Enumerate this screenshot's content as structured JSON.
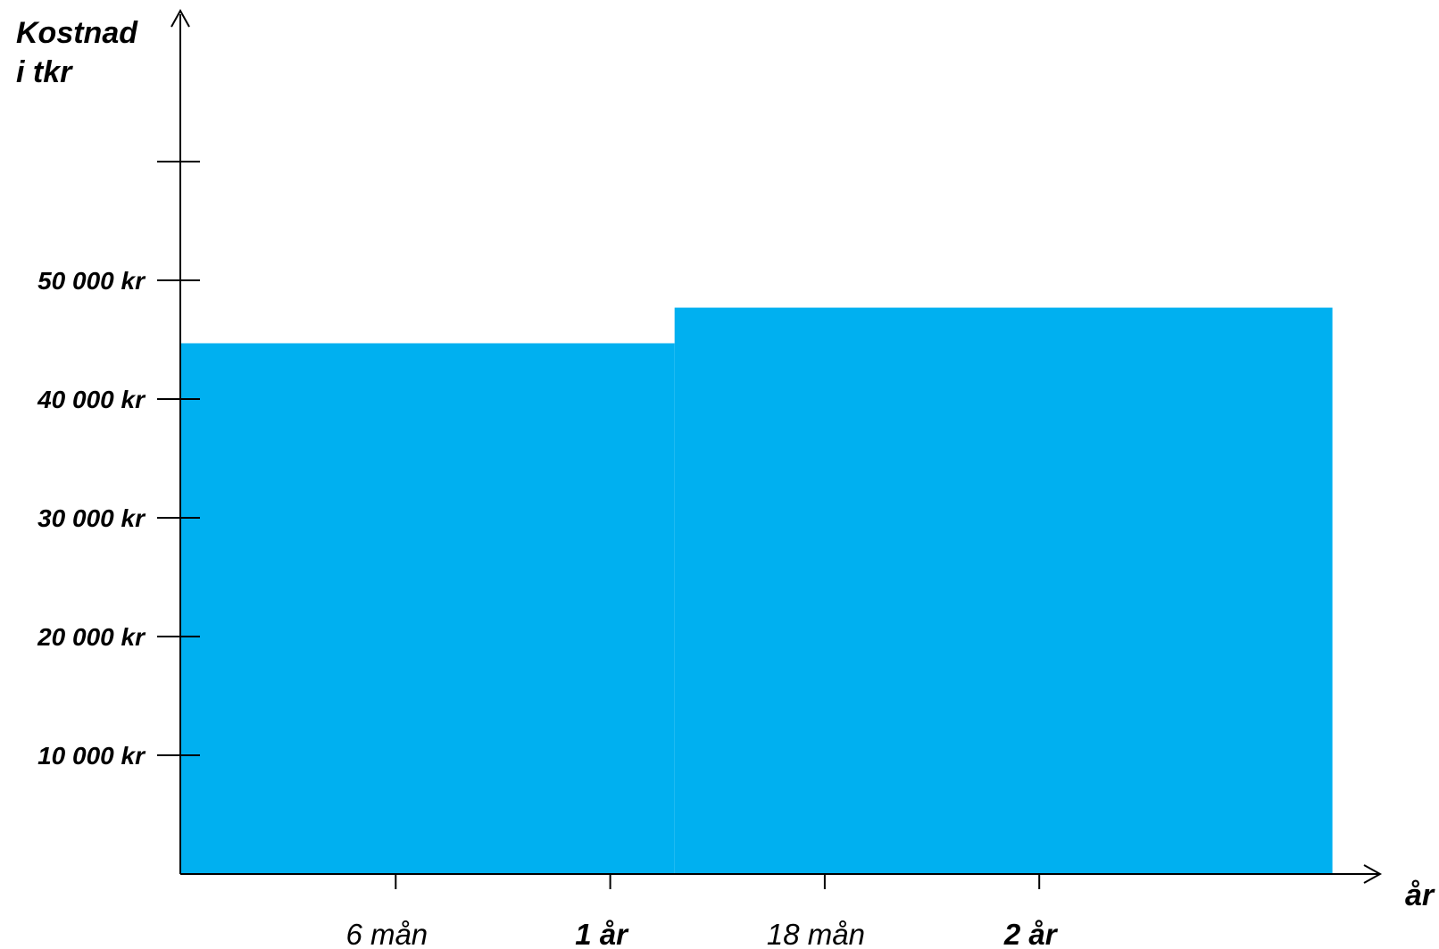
{
  "chart_data": {
    "type": "area",
    "title": "",
    "ylabel_lines": [
      "Kostnad",
      "i tkr"
    ],
    "xlabel": "år",
    "ylim": [
      0,
      60000
    ],
    "xlim_months": [
      0,
      32
    ],
    "y_ticks": [
      {
        "value": 10000,
        "label": "10 000 kr"
      },
      {
        "value": 20000,
        "label": "20 000 kr"
      },
      {
        "value": 30000,
        "label": "30 000 kr"
      },
      {
        "value": 40000,
        "label": "40 000 kr"
      },
      {
        "value": 50000,
        "label": "50 000 kr"
      },
      {
        "value": 60000,
        "label": ""
      }
    ],
    "x_ticks": [
      {
        "months": 6,
        "label": "6 mån",
        "bold": false
      },
      {
        "months": 12,
        "label": "1 år",
        "bold": true
      },
      {
        "months": 18,
        "label": "18 mån",
        "bold": false
      },
      {
        "months": 24,
        "label": "2 år",
        "bold": true
      }
    ],
    "series": [
      {
        "color": "#00b0f0",
        "segments": [
          {
            "x_start_months": 0,
            "x_end_months": 13.8,
            "value": 44700
          },
          {
            "x_start_months": 13.8,
            "x_end_months": 32.2,
            "value": 47700
          }
        ]
      }
    ],
    "grid": false,
    "legend": "none"
  }
}
